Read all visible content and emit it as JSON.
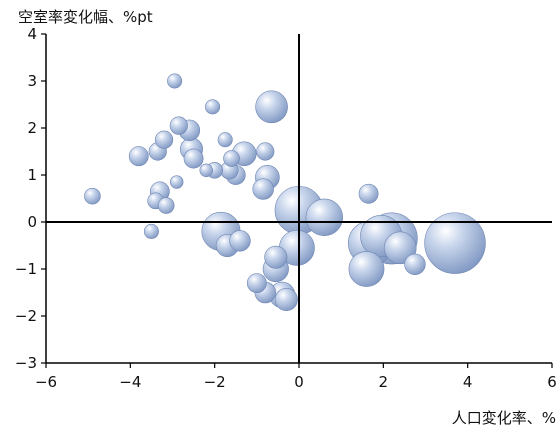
{
  "chart_data": {
    "type": "scatter",
    "subtype": "bubble",
    "ylabel": "空室率変化幅、%pt",
    "xlabel": "人口変化率、%",
    "xlim": [
      -6,
      6
    ],
    "ylim": [
      -3,
      4
    ],
    "xticks": [
      "−6",
      "−4",
      "−2",
      "0",
      "2",
      "4",
      "6"
    ],
    "yticks": [
      "−3",
      "−2",
      "−1",
      "0",
      "1",
      "2",
      "3",
      "4"
    ],
    "grid": false,
    "bubble_color": "#8fa8d0",
    "points": [
      {
        "x": -4.9,
        "y": 0.55,
        "size": 1
      },
      {
        "x": -3.8,
        "y": 1.4,
        "size": 1.2
      },
      {
        "x": -3.5,
        "y": -0.2,
        "size": 0.9
      },
      {
        "x": -3.4,
        "y": 0.45,
        "size": 1
      },
      {
        "x": -3.35,
        "y": 1.5,
        "size": 1.1
      },
      {
        "x": -3.3,
        "y": 0.65,
        "size": 1.2
      },
      {
        "x": -3.2,
        "y": 1.75,
        "size": 1.1
      },
      {
        "x": -3.15,
        "y": 0.35,
        "size": 1
      },
      {
        "x": -2.95,
        "y": 3.0,
        "size": 0.9
      },
      {
        "x": -2.9,
        "y": 0.85,
        "size": 0.8
      },
      {
        "x": -2.85,
        "y": 2.05,
        "size": 1.1
      },
      {
        "x": -2.6,
        "y": 1.95,
        "size": 1.3
      },
      {
        "x": -2.55,
        "y": 1.55,
        "size": 1.4
      },
      {
        "x": -2.5,
        "y": 1.35,
        "size": 1.2
      },
      {
        "x": -2.2,
        "y": 1.1,
        "size": 0.8
      },
      {
        "x": -2.05,
        "y": 2.45,
        "size": 0.9
      },
      {
        "x": -2.0,
        "y": 1.1,
        "size": 1
      },
      {
        "x": -1.85,
        "y": -0.2,
        "size": 2.4
      },
      {
        "x": -1.75,
        "y": 1.75,
        "size": 0.9
      },
      {
        "x": -1.7,
        "y": -0.5,
        "size": 1.4
      },
      {
        "x": -1.65,
        "y": 1.1,
        "size": 1.1
      },
      {
        "x": -1.6,
        "y": 1.35,
        "size": 1
      },
      {
        "x": -1.5,
        "y": 1.0,
        "size": 1.2
      },
      {
        "x": -1.4,
        "y": -0.4,
        "size": 1.3
      },
      {
        "x": -1.3,
        "y": 1.45,
        "size": 1.5
      },
      {
        "x": -1.0,
        "y": -1.3,
        "size": 1.2
      },
      {
        "x": -0.85,
        "y": 0.7,
        "size": 1.3
      },
      {
        "x": -0.8,
        "y": 1.5,
        "size": 1.1
      },
      {
        "x": -0.8,
        "y": -1.5,
        "size": 1.3
      },
      {
        "x": -0.75,
        "y": 0.95,
        "size": 1.5
      },
      {
        "x": -0.65,
        "y": 2.45,
        "size": 2.0
      },
      {
        "x": -0.55,
        "y": -0.75,
        "size": 1.4
      },
      {
        "x": -0.55,
        "y": -1.0,
        "size": 1.6
      },
      {
        "x": -0.4,
        "y": -1.55,
        "size": 1.6
      },
      {
        "x": -0.3,
        "y": -1.65,
        "size": 1.4
      },
      {
        "x": -0.05,
        "y": -0.55,
        "size": 2.2
      },
      {
        "x": 0.0,
        "y": 0.25,
        "size": 3.0
      },
      {
        "x": 0.6,
        "y": 0.1,
        "size": 2.3
      },
      {
        "x": 1.65,
        "y": 0.6,
        "size": 1.2
      },
      {
        "x": 1.6,
        "y": -1.0,
        "size": 2.2
      },
      {
        "x": 1.7,
        "y": -0.45,
        "size": 2.8
      },
      {
        "x": 1.95,
        "y": -0.3,
        "size": 2.6
      },
      {
        "x": 2.2,
        "y": -0.35,
        "size": 3.2
      },
      {
        "x": 2.4,
        "y": -0.55,
        "size": 2.0
      },
      {
        "x": 2.75,
        "y": -0.9,
        "size": 1.3
      },
      {
        "x": 3.7,
        "y": -0.45,
        "size": 3.8
      }
    ]
  }
}
